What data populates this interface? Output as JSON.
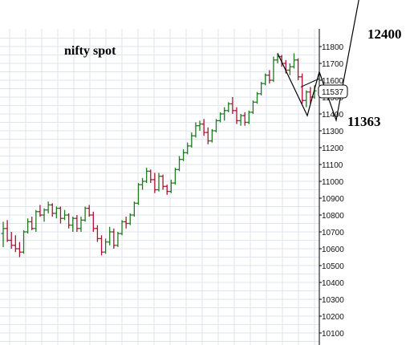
{
  "chart_data": {
    "type": "ohlc",
    "title": "nifty spot",
    "ylim": [
      10050,
      11900
    ],
    "y_ticks": [
      "11800",
      "11700",
      "11600",
      "11500",
      "11400",
      "11300",
      "11200",
      "11100",
      "11000",
      "10900",
      "10800",
      "10700",
      "10600",
      "10500",
      "10400",
      "10300",
      "10200",
      "10100"
    ],
    "last_price_label": "11537",
    "grid": true,
    "colors": {
      "up": "#1e7a1e",
      "down": "#b01030",
      "grid": "#dde6ee",
      "axis": "#000000"
    },
    "bars": [
      [
        10690,
        10760,
        10610,
        10720
      ],
      [
        10720,
        10770,
        10640,
        10650
      ],
      [
        10650,
        10700,
        10600,
        10620
      ],
      [
        10620,
        10680,
        10580,
        10600
      ],
      [
        10600,
        10640,
        10550,
        10580
      ],
      [
        10580,
        10710,
        10570,
        10700
      ],
      [
        10700,
        10780,
        10690,
        10760
      ],
      [
        10760,
        10790,
        10710,
        10720
      ],
      [
        10720,
        10830,
        10700,
        10820
      ],
      [
        10820,
        10860,
        10790,
        10800
      ],
      [
        10800,
        10840,
        10760,
        10830
      ],
      [
        10830,
        10880,
        10810,
        10860
      ],
      [
        10860,
        10870,
        10790,
        10810
      ],
      [
        10810,
        10850,
        10780,
        10840
      ],
      [
        10840,
        10850,
        10750,
        10780
      ],
      [
        10780,
        10830,
        10770,
        10800
      ],
      [
        10800,
        10810,
        10720,
        10740
      ],
      [
        10740,
        10790,
        10700,
        10780
      ],
      [
        10780,
        10800,
        10700,
        10720
      ],
      [
        10720,
        10790,
        10700,
        10770
      ],
      [
        10770,
        10850,
        10760,
        10840
      ],
      [
        10840,
        10860,
        10790,
        10800
      ],
      [
        10800,
        10820,
        10700,
        10720
      ],
      [
        10720,
        10740,
        10640,
        10660
      ],
      [
        10660,
        10680,
        10560,
        10580
      ],
      [
        10580,
        10660,
        10570,
        10640
      ],
      [
        10640,
        10730,
        10620,
        10700
      ],
      [
        10700,
        10720,
        10600,
        10620
      ],
      [
        10620,
        10700,
        10610,
        10690
      ],
      [
        10690,
        10770,
        10680,
        10760
      ],
      [
        10760,
        10790,
        10720,
        10750
      ],
      [
        10750,
        10810,
        10740,
        10800
      ],
      [
        10800,
        10880,
        10790,
        10870
      ],
      [
        10870,
        10990,
        10860,
        10980
      ],
      [
        10980,
        11020,
        10950,
        11000
      ],
      [
        11000,
        11080,
        10990,
        11060
      ],
      [
        11060,
        11070,
        10990,
        11010
      ],
      [
        11010,
        11050,
        10930,
        10950
      ],
      [
        10950,
        11050,
        10940,
        11030
      ],
      [
        11030,
        11040,
        10950,
        10970
      ],
      [
        10970,
        10980,
        10920,
        10940
      ],
      [
        10940,
        11010,
        10930,
        10990
      ],
      [
        10990,
        11080,
        10980,
        11070
      ],
      [
        11070,
        11150,
        11060,
        11130
      ],
      [
        11130,
        11190,
        11120,
        11170
      ],
      [
        11170,
        11230,
        11160,
        11210
      ],
      [
        11210,
        11290,
        11200,
        11270
      ],
      [
        11270,
        11350,
        11260,
        11330
      ],
      [
        11330,
        11360,
        11300,
        11340
      ],
      [
        11340,
        11370,
        11270,
        11290
      ],
      [
        11290,
        11320,
        11220,
        11240
      ],
      [
        11240,
        11310,
        11230,
        11300
      ],
      [
        11300,
        11370,
        11290,
        11360
      ],
      [
        11360,
        11410,
        11350,
        11400
      ],
      [
        11400,
        11440,
        11360,
        11420
      ],
      [
        11420,
        11470,
        11410,
        11460
      ],
      [
        11460,
        11500,
        11400,
        11420
      ],
      [
        11420,
        11440,
        11340,
        11360
      ],
      [
        11360,
        11400,
        11330,
        11390
      ],
      [
        11390,
        11410,
        11330,
        11350
      ],
      [
        11350,
        11420,
        11340,
        11410
      ],
      [
        11410,
        11480,
        11400,
        11470
      ],
      [
        11470,
        11530,
        11460,
        11520
      ],
      [
        11520,
        11590,
        11510,
        11580
      ],
      [
        11580,
        11640,
        11570,
        11630
      ],
      [
        11630,
        11660,
        11580,
        11600
      ],
      [
        11600,
        11740,
        11590,
        11720
      ],
      [
        11720,
        11760,
        11700,
        11740
      ],
      [
        11740,
        11750,
        11680,
        11700
      ],
      [
        11700,
        11720,
        11640,
        11660
      ],
      [
        11660,
        11700,
        11630,
        11680
      ],
      [
        11680,
        11760,
        11670,
        11720
      ],
      [
        11720,
        11730,
        11600,
        11620
      ],
      [
        11620,
        11640,
        11460,
        11480
      ],
      [
        11480,
        11540,
        11440,
        11530
      ],
      [
        11530,
        11560,
        11460,
        11500
      ],
      [
        11500,
        11570,
        11490,
        11537
      ]
    ],
    "annotations": [
      {
        "text": "12400",
        "value": 12400
      },
      {
        "text": "11363",
        "value": 11363
      }
    ]
  }
}
